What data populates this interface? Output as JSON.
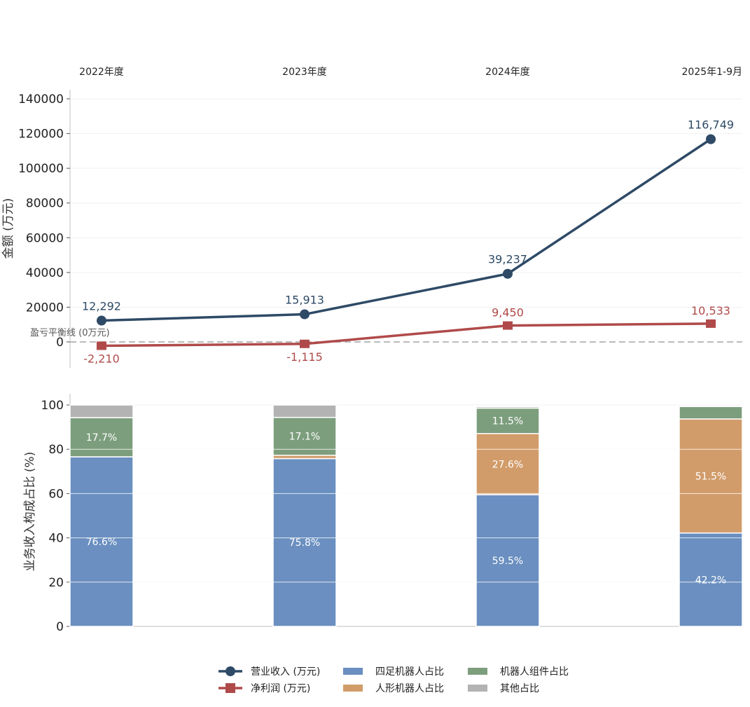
{
  "chart_data": [
    {
      "type": "line",
      "categories": [
        "2022年度",
        "2023年度",
        "2024年度",
        "2025年1-9月"
      ],
      "ylabel": "金额 (万元)",
      "ylim": [
        -15000,
        145000
      ],
      "yticks": [
        0,
        20000,
        40000,
        60000,
        80000,
        100000,
        120000,
        140000
      ],
      "grid": true,
      "series": [
        {
          "name": "营业收入 (万元)",
          "color": "#2e4a66",
          "marker": "circle",
          "values": [
            12292,
            15913,
            39237,
            116749
          ],
          "labels": [
            "12,292",
            "15,913",
            "39,237",
            "116,749"
          ]
        },
        {
          "name": "净利润 (万元)",
          "color": "#b04a4a",
          "marker": "square",
          "values": [
            -2210,
            -1115,
            9450,
            10533
          ],
          "labels": [
            "-2,210",
            "-1,115",
            "9,450",
            "10,533"
          ]
        }
      ],
      "annotations": [
        {
          "text": "盈亏平衡线 (0万元)",
          "y": 0,
          "style": "dashed",
          "color": "#bbbbbb"
        }
      ]
    },
    {
      "type": "bar",
      "stacked": true,
      "categories": [
        "2022年度",
        "2023年度",
        "2024年度",
        "2025年1-9月"
      ],
      "ylabel": "业务收入构成占比 (%)",
      "ylim": [
        0,
        100
      ],
      "yticks": [
        0,
        20,
        40,
        60,
        80,
        100
      ],
      "grid": true,
      "series": [
        {
          "name": "四足机器人占比",
          "color": "#6a8fc0",
          "values": [
            76.6,
            75.8,
            59.5,
            42.2
          ],
          "labels": [
            "76.6%",
            "75.8%",
            "59.5%",
            "42.2%"
          ]
        },
        {
          "name": "人形机器人占比",
          "color": "#d19c6a",
          "values": [
            0.0,
            1.5,
            27.6,
            51.5
          ],
          "labels": [
            "",
            "",
            "27.6%",
            "51.5%"
          ]
        },
        {
          "name": "机器人组件占比",
          "color": "#7d9e7d",
          "values": [
            17.7,
            17.1,
            11.5,
            5.6
          ],
          "labels": [
            "17.7%",
            "17.1%",
            "11.5%",
            ""
          ]
        },
        {
          "name": "其他占比",
          "color": "#b3b3b3",
          "values": [
            5.7,
            5.6,
            0.7,
            0.0
          ],
          "labels": [
            "",
            "",
            "",
            ""
          ]
        }
      ]
    }
  ],
  "legend": {
    "placement": "bottom-center",
    "items": [
      {
        "label": "营业收入 (万元)",
        "kind": "line-circle",
        "color": "#2e4a66"
      },
      {
        "label": "净利润 (万元)",
        "kind": "line-square",
        "color": "#b04a4a"
      },
      {
        "label": "四足机器人占比",
        "kind": "patch",
        "color": "#6a8fc0"
      },
      {
        "label": "人形机器人占比",
        "kind": "patch",
        "color": "#d19c6a"
      },
      {
        "label": "机器人组件占比",
        "kind": "patch",
        "color": "#7d9e7d"
      },
      {
        "label": "其他占比",
        "kind": "patch",
        "color": "#b3b3b3"
      }
    ]
  }
}
